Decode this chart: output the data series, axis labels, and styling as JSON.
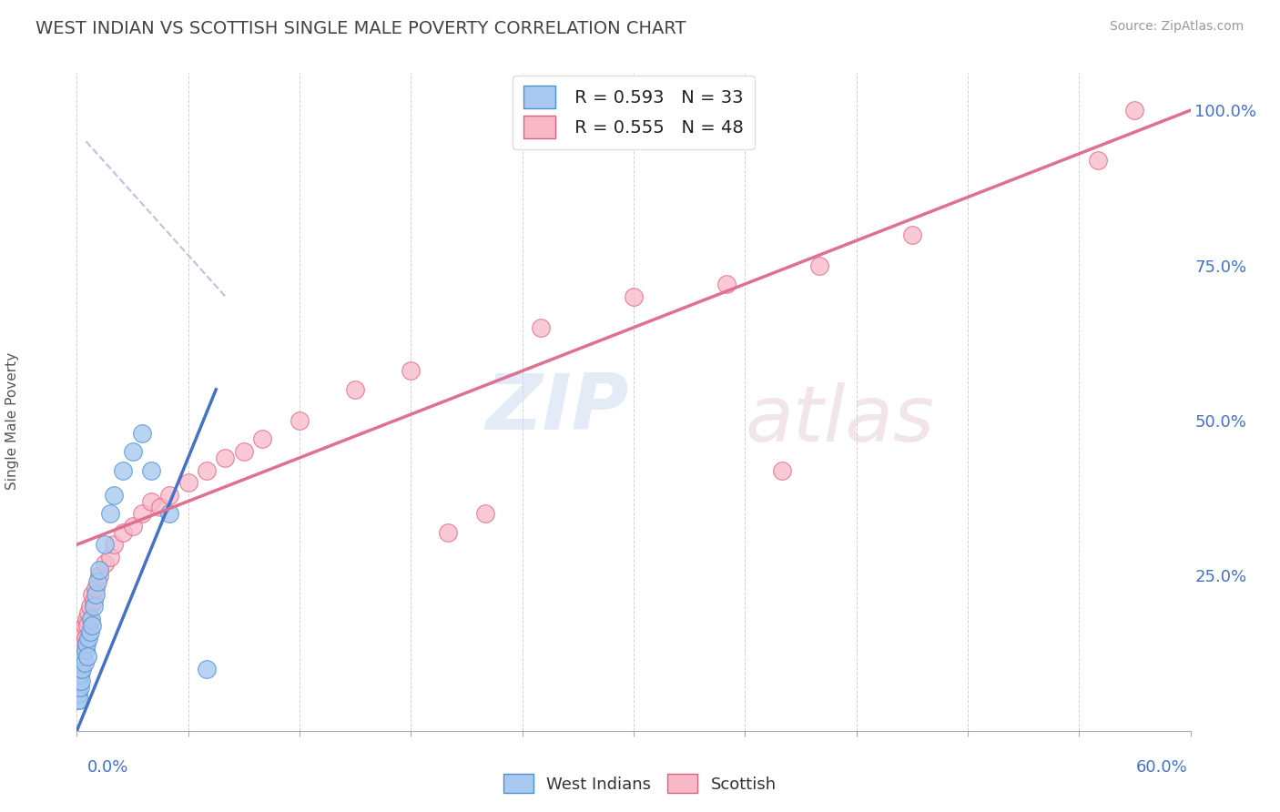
{
  "title": "WEST INDIAN VS SCOTTISH SINGLE MALE POVERTY CORRELATION CHART",
  "source": "Source: ZipAtlas.com",
  "ylabel": "Single Male Poverty",
  "legend_r1": "R = 0.593",
  "legend_n1": "N = 33",
  "legend_r2": "R = 0.555",
  "legend_n2": "N = 48",
  "color_blue_fill": "#a8c8f0",
  "color_blue_edge": "#5090d0",
  "color_pink_fill": "#f8b8c8",
  "color_pink_edge": "#e06080",
  "color_blue_line": "#4472c4",
  "color_pink_line": "#e07090",
  "color_dashed": "#b0b8d8",
  "color_axis_label": "#4472c4",
  "color_title": "#444444",
  "color_source": "#999999",
  "color_ylabel": "#555555",
  "west_indian_x": [
    0.05,
    0.08,
    0.1,
    0.12,
    0.15,
    0.18,
    0.2,
    0.22,
    0.25,
    0.28,
    0.3,
    0.35,
    0.4,
    0.45,
    0.5,
    0.55,
    0.6,
    0.7,
    0.75,
    0.8,
    0.9,
    1.0,
    1.1,
    1.2,
    1.5,
    1.8,
    2.0,
    2.5,
    3.0,
    3.5,
    4.0,
    5.0,
    7.0
  ],
  "west_indian_y": [
    5,
    6,
    7,
    5,
    8,
    7,
    9,
    10,
    8,
    11,
    10,
    12,
    11,
    13,
    14,
    12,
    15,
    16,
    18,
    17,
    20,
    22,
    24,
    26,
    30,
    35,
    38,
    42,
    45,
    48,
    42,
    35,
    10
  ],
  "scottish_x": [
    0.05,
    0.08,
    0.1,
    0.12,
    0.15,
    0.18,
    0.2,
    0.25,
    0.28,
    0.3,
    0.35,
    0.4,
    0.45,
    0.5,
    0.55,
    0.6,
    0.7,
    0.8,
    0.9,
    1.0,
    1.2,
    1.5,
    1.8,
    2.0,
    2.5,
    3.0,
    3.5,
    4.0,
    4.5,
    5.0,
    6.0,
    7.0,
    8.0,
    9.0,
    10.0,
    12.0,
    15.0,
    18.0,
    25.0,
    30.0,
    35.0,
    40.0,
    45.0,
    55.0,
    57.0,
    38.0,
    22.0,
    20.0
  ],
  "scottish_y": [
    8,
    9,
    10,
    11,
    12,
    13,
    11,
    14,
    13,
    15,
    16,
    17,
    15,
    18,
    17,
    19,
    20,
    22,
    21,
    23,
    25,
    27,
    28,
    30,
    32,
    33,
    35,
    37,
    36,
    38,
    40,
    42,
    44,
    45,
    47,
    50,
    55,
    58,
    65,
    70,
    72,
    75,
    80,
    92,
    100,
    42,
    35,
    32
  ],
  "blue_line_x": [
    0.0,
    7.5
  ],
  "blue_line_y": [
    0.0,
    55.0
  ],
  "pink_line_x": [
    0.0,
    60.0
  ],
  "pink_line_y": [
    30.0,
    100.0
  ],
  "dashed_line_x": [
    0.5,
    8.0
  ],
  "dashed_line_y": [
    95.0,
    70.0
  ],
  "xlim": [
    0,
    60
  ],
  "ylim": [
    0,
    106
  ],
  "yticks": [
    0,
    25,
    50,
    75,
    100
  ]
}
